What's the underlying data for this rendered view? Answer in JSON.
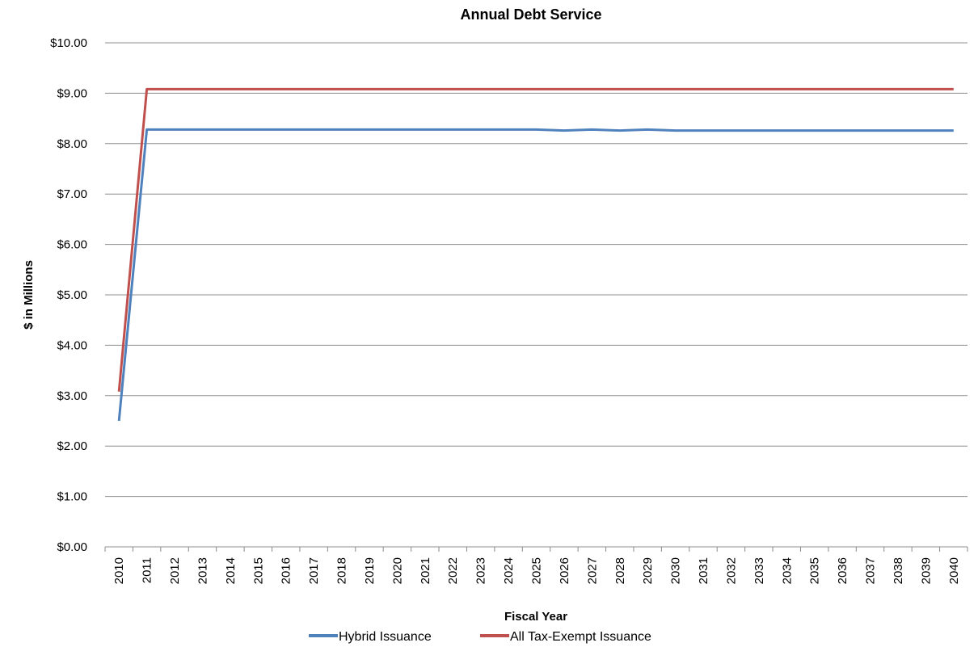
{
  "chart_data": {
    "type": "line",
    "title": "Annual Debt Service",
    "xlabel": "Fiscal Year",
    "ylabel": "$ in Millions",
    "ylim": [
      0,
      10
    ],
    "yticks": [
      "$0.00",
      "$1.00",
      "$2.00",
      "$3.00",
      "$4.00",
      "$5.00",
      "$6.00",
      "$7.00",
      "$8.00",
      "$9.00",
      "$10.00"
    ],
    "categories": [
      "2010",
      "2011",
      "2012",
      "2013",
      "2014",
      "2015",
      "2016",
      "2017",
      "2018",
      "2019",
      "2020",
      "2021",
      "2022",
      "2023",
      "2024",
      "2025",
      "2026",
      "2027",
      "2028",
      "2029",
      "2030",
      "2031",
      "2032",
      "2033",
      "2034",
      "2035",
      "2036",
      "2037",
      "2038",
      "2039",
      "2040"
    ],
    "grid": true,
    "legend_position": "bottom",
    "series": [
      {
        "name": "Hybrid Issuance",
        "color": "#4f81bd",
        "values": [
          2.5,
          8.28,
          8.28,
          8.28,
          8.28,
          8.28,
          8.28,
          8.28,
          8.28,
          8.28,
          8.28,
          8.28,
          8.28,
          8.28,
          8.28,
          8.28,
          8.26,
          8.28,
          8.26,
          8.28,
          8.26,
          8.26,
          8.26,
          8.26,
          8.26,
          8.26,
          8.26,
          8.26,
          8.26,
          8.26,
          8.26
        ]
      },
      {
        "name": "All Tax-Exempt Issuance",
        "color": "#c0504d",
        "values": [
          3.08,
          9.08,
          9.08,
          9.08,
          9.08,
          9.08,
          9.08,
          9.08,
          9.08,
          9.08,
          9.08,
          9.08,
          9.08,
          9.08,
          9.08,
          9.08,
          9.08,
          9.08,
          9.08,
          9.08,
          9.08,
          9.08,
          9.08,
          9.08,
          9.08,
          9.08,
          9.08,
          9.08,
          9.08,
          9.08,
          9.08
        ]
      }
    ]
  }
}
